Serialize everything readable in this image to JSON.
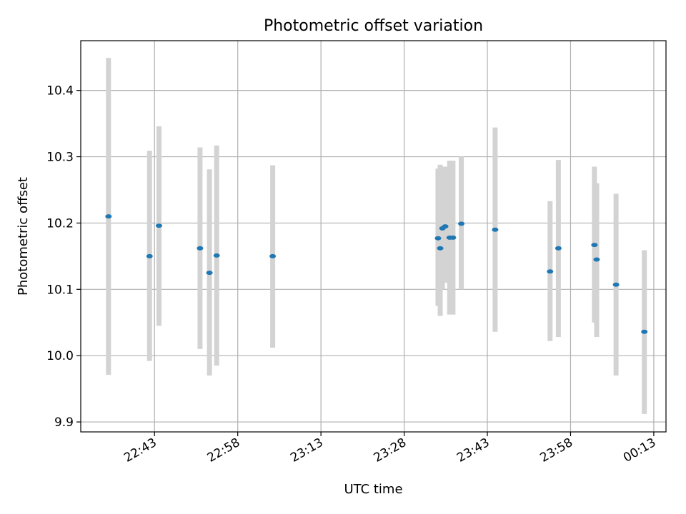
{
  "chart_data": {
    "type": "scatter",
    "title": "Photometric offset variation",
    "xlabel": "UTC time",
    "ylabel": "Photometric offset",
    "xlim": [
      "22:29:42",
      "00:15:12"
    ],
    "ylim": [
      9.885,
      10.475
    ],
    "x_ticks": [
      "22:43",
      "22:58",
      "23:13",
      "23:28",
      "23:43",
      "23:58",
      "00:13"
    ],
    "y_ticks": [
      9.9,
      10.0,
      10.1,
      10.2,
      10.3,
      10.4
    ],
    "grid": true,
    "colors": {
      "point": "#1f77b4",
      "errorbar": "#d3d3d3",
      "grid": "#b0b0b0",
      "axes": "#000000"
    },
    "series": [
      {
        "x": [
          "22:34:42",
          "22:42:06",
          "22:43:48",
          "22:51:12",
          "22:52:54",
          "22:54:12",
          "23:04:18",
          "23:34:06",
          "23:34:30",
          "23:34:54",
          "23:35:24",
          "23:36:12",
          "23:36:48",
          "23:38:18",
          "23:44:24",
          "23:54:18",
          "23:55:48",
          "00:02:18",
          "00:02:42",
          "00:06:12",
          "00:11:18"
        ],
        "y": [
          10.21,
          10.15,
          10.196,
          10.162,
          10.125,
          10.151,
          10.15,
          10.177,
          10.162,
          10.192,
          10.195,
          10.178,
          10.178,
          10.199,
          10.19,
          10.127,
          10.162,
          10.167,
          10.145,
          10.107,
          10.036
        ],
        "err_low": [
          9.971,
          9.992,
          10.045,
          10.01,
          9.97,
          9.985,
          10.012,
          10.075,
          10.06,
          10.1,
          10.11,
          10.062,
          10.062,
          10.1,
          10.036,
          10.022,
          10.028,
          10.05,
          10.028,
          9.97,
          9.912
        ],
        "err_high": [
          10.449,
          10.309,
          10.346,
          10.314,
          10.281,
          10.317,
          10.287,
          10.282,
          10.288,
          10.285,
          10.285,
          10.294,
          10.294,
          10.3,
          10.344,
          10.233,
          10.295,
          10.285,
          10.26,
          10.244,
          10.159
        ]
      }
    ]
  }
}
